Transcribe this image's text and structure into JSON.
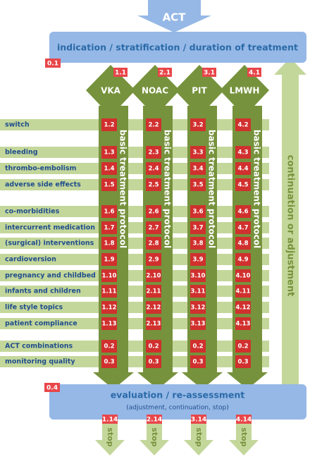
{
  "top_arrow": "ACT",
  "header": {
    "badge": "0.1",
    "title": "indication / stratification / duration of treatment"
  },
  "columns": [
    {
      "name": "VKA",
      "badge": "1.1",
      "protocol": "basic treatment protocol",
      "stop_badge": "1.14",
      "stop": "stop"
    },
    {
      "name": "NOAC",
      "badge": "2.1",
      "protocol": "basic treatment protocol",
      "stop_badge": "2.14",
      "stop": "stop"
    },
    {
      "name": "PIT",
      "badge": "3.1",
      "protocol": "basic treatment protocol",
      "stop_badge": "3.14",
      "stop": "stop"
    },
    {
      "name": "LMWH",
      "badge": "4.1",
      "protocol": "basic treatment protocol",
      "stop_badge": "4.14",
      "stop": "stop"
    }
  ],
  "rows": [
    {
      "label": "switch",
      "codes": [
        "1.2",
        "2.2",
        "3.2",
        "4.2"
      ]
    },
    {
      "label": "bleeding",
      "codes": [
        "1.3",
        "2.3",
        "3.3",
        "4.3"
      ]
    },
    {
      "label": "thrombo-embolism",
      "codes": [
        "1.4",
        "2.4",
        "3.4",
        "4.4"
      ]
    },
    {
      "label": "adverse side effects",
      "codes": [
        "1.5",
        "2.5",
        "3.5",
        "4.5"
      ]
    },
    {
      "label": "co-morbidities",
      "codes": [
        "1.6",
        "2.6",
        "3.6",
        "4.6"
      ]
    },
    {
      "label": "intercurrent medication",
      "codes": [
        "1.7",
        "2.7",
        "3.7",
        "4.7"
      ]
    },
    {
      "label": "(surgical) interventions",
      "codes": [
        "1.8",
        "2.8",
        "3.8",
        "4.8"
      ]
    },
    {
      "label": "cardioversion",
      "codes": [
        "1.9",
        "2.9",
        "3.9",
        "4.9"
      ]
    },
    {
      "label": "pregnancy and childbed",
      "codes": [
        "1.10",
        "2.10",
        "3.10",
        "4.10"
      ]
    },
    {
      "label": "infants and children",
      "codes": [
        "1.11",
        "2.11",
        "3.11",
        "4.11"
      ]
    },
    {
      "label": "life style topics",
      "codes": [
        "1.12",
        "2.12",
        "3.12",
        "4.12"
      ]
    },
    {
      "label": "patient compliance",
      "codes": [
        "1.13",
        "2.13",
        "3.13",
        "4.13"
      ]
    },
    {
      "label": "ACT combinations",
      "codes": [
        "0.2",
        "0.2",
        "0.2",
        "0.2"
      ]
    },
    {
      "label": "monitoring quality",
      "codes": [
        "0.3",
        "0.3",
        "0.3",
        "0.3"
      ]
    }
  ],
  "side_arrow": "continuation  or  adjustment",
  "footer": {
    "badge": "0.4",
    "title": "evaluation / re-assessment",
    "subtitle": "(adjustment, continuation, stop)"
  }
}
